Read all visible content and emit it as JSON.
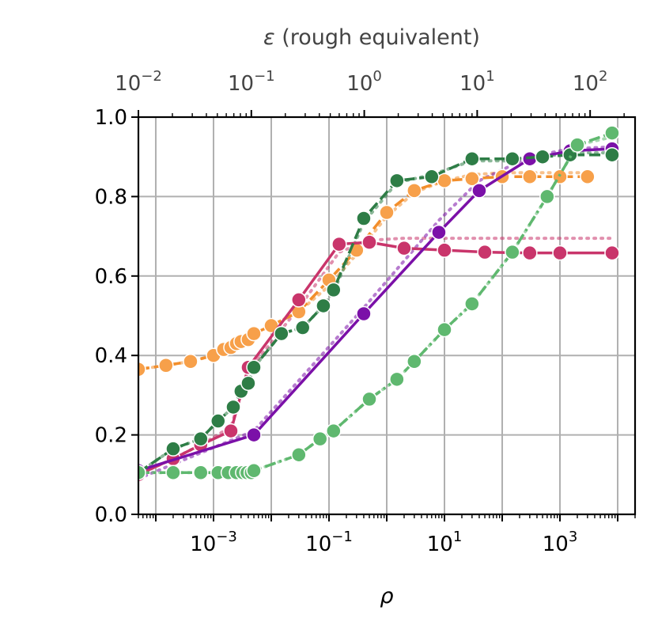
{
  "chart_data": {
    "type": "line",
    "xlabel": "ρ",
    "x_scale": "log",
    "xlim": [
      5e-05,
      20000
    ],
    "x_ticks": [
      {
        "value": 0.001,
        "base": "10",
        "exp": "−3"
      },
      {
        "value": 0.1,
        "base": "10",
        "exp": "−1"
      },
      {
        "value": 10,
        "base": "10",
        "exp": "1"
      },
      {
        "value": 1000,
        "base": "10",
        "exp": "3"
      }
    ],
    "top_xlabel": "ε (rough equivalent)",
    "top_xlabel_symbol": "ε",
    "top_xlabel_rest": " (rough equivalent)",
    "top_x_ticks": [
      {
        "value": 0.01,
        "base": "10",
        "exp": "−2"
      },
      {
        "value": 0.1,
        "base": "10",
        "exp": "−1"
      },
      {
        "value": 1,
        "base": "10",
        "exp": "0"
      },
      {
        "value": 10,
        "base": "10",
        "exp": "1"
      },
      {
        "value": 100,
        "base": "10",
        "exp": "2"
      }
    ],
    "top_xlim": [
      0.01,
      250
    ],
    "ylim": [
      0.0,
      1.0
    ],
    "y_ticks": [
      "0.0",
      "0.2",
      "0.4",
      "0.6",
      "0.8",
      "1.0"
    ],
    "grid": true,
    "series": [
      {
        "color": "#f28e2b",
        "marker_color": "#f7a04a",
        "line_style": "dashed",
        "x": [
          5e-05,
          0.00015,
          0.0004,
          0.001,
          0.0015,
          0.002,
          0.0025,
          0.003,
          0.004,
          0.005,
          0.01,
          0.03,
          0.1,
          0.3,
          1,
          3,
          10,
          30,
          100,
          300,
          1000,
          3000
        ],
        "y": [
          0.365,
          0.375,
          0.385,
          0.4,
          0.415,
          0.42,
          0.43,
          0.435,
          0.44,
          0.455,
          0.475,
          0.51,
          0.59,
          0.665,
          0.76,
          0.815,
          0.84,
          0.845,
          0.85,
          0.85,
          0.85,
          0.85
        ],
        "ref_y": [
          0.365,
          0.375,
          0.385,
          0.4,
          0.415,
          0.42,
          0.43,
          0.435,
          0.44,
          0.455,
          0.475,
          0.51,
          0.575,
          0.655,
          0.75,
          0.81,
          0.84,
          0.855,
          0.86,
          0.86,
          0.86,
          0.86
        ]
      },
      {
        "color": "#c9356b",
        "marker_color": "#c9356b",
        "line_style": "solid",
        "x": [
          5e-05,
          0.0002,
          0.0006,
          0.002,
          0.004,
          0.03,
          0.15,
          0.5,
          2,
          10,
          50,
          300,
          1000,
          8000
        ],
        "y": [
          0.1,
          0.14,
          0.175,
          0.21,
          0.37,
          0.54,
          0.68,
          0.685,
          0.67,
          0.665,
          0.66,
          0.658,
          0.658,
          0.658
        ],
        "ref_y": [
          0.1,
          0.14,
          0.175,
          0.22,
          0.36,
          0.52,
          0.66,
          0.69,
          0.695,
          0.695,
          0.695,
          0.695,
          0.695,
          0.695
        ]
      },
      {
        "color": "#7b10a8",
        "marker_color": "#7b10a8",
        "line_style": "solid",
        "x": [
          5e-05,
          0.005,
          0.4,
          8,
          40,
          300,
          1500,
          8000
        ],
        "y": [
          0.11,
          0.2,
          0.505,
          0.71,
          0.815,
          0.895,
          0.915,
          0.92
        ],
        "ref_y": [
          0.09,
          0.21,
          0.52,
          0.74,
          0.84,
          0.9,
          0.92,
          0.925
        ]
      },
      {
        "color": "#2e7d46",
        "marker_color": "#2e7d46",
        "line_style": "dashed",
        "x": [
          5e-05,
          0.0002,
          0.0006,
          0.0012,
          0.0022,
          0.003,
          0.004,
          0.005,
          0.015,
          0.035,
          0.08,
          0.12,
          0.4,
          1.5,
          6,
          30,
          150,
          500,
          1500,
          8000
        ],
        "y": [
          0.105,
          0.165,
          0.19,
          0.235,
          0.27,
          0.31,
          0.33,
          0.37,
          0.455,
          0.47,
          0.525,
          0.565,
          0.745,
          0.84,
          0.85,
          0.895,
          0.895,
          0.9,
          0.905,
          0.905
        ],
        "ref_y": [
          0.105,
          0.165,
          0.19,
          0.235,
          0.27,
          0.31,
          0.33,
          0.37,
          0.455,
          0.47,
          0.525,
          0.56,
          0.735,
          0.835,
          0.855,
          0.89,
          0.89,
          0.9,
          0.91,
          0.91
        ]
      },
      {
        "color": "#5fb86f",
        "marker_color": "#5fb86f",
        "line_style": "dashdot",
        "x": [
          5e-05,
          0.0002,
          0.0006,
          0.0012,
          0.0018,
          0.0025,
          0.0032,
          0.0038,
          0.0045,
          0.005,
          0.03,
          0.07,
          0.12,
          0.5,
          1.5,
          3,
          10,
          30,
          150,
          600,
          2000,
          8000
        ],
        "y": [
          0.105,
          0.105,
          0.105,
          0.105,
          0.105,
          0.105,
          0.105,
          0.105,
          0.105,
          0.11,
          0.15,
          0.19,
          0.21,
          0.29,
          0.34,
          0.385,
          0.465,
          0.53,
          0.66,
          0.8,
          0.93,
          0.96
        ],
        "ref_y": [
          0.105,
          0.105,
          0.105,
          0.105,
          0.105,
          0.105,
          0.105,
          0.105,
          0.105,
          0.11,
          0.15,
          0.19,
          0.21,
          0.29,
          0.34,
          0.385,
          0.465,
          0.53,
          0.66,
          0.8,
          0.93,
          0.95
        ]
      }
    ]
  }
}
